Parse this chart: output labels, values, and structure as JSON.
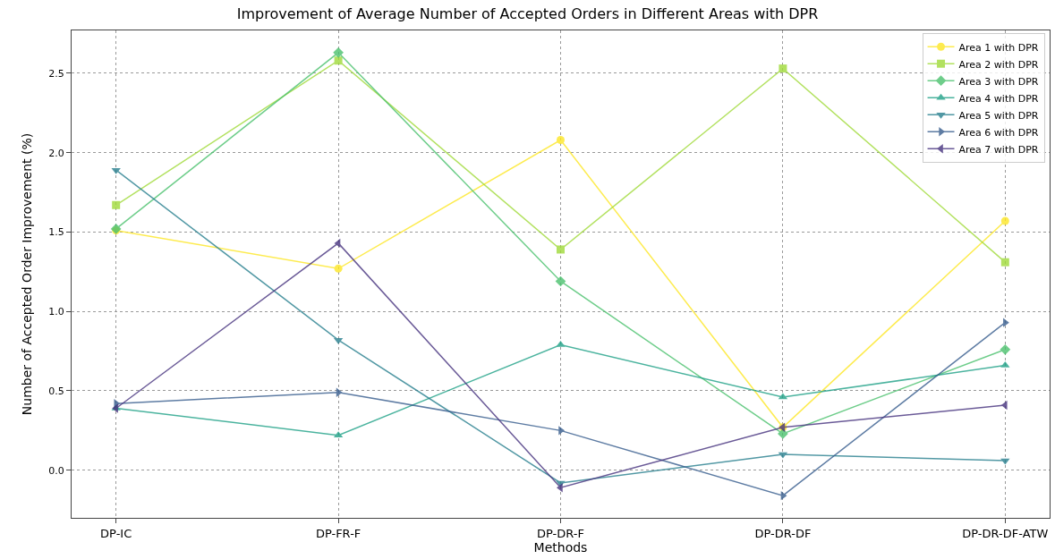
{
  "chart_data": {
    "type": "line",
    "title": "Improvement of Average Number of Accepted Orders in Different Areas with DPR",
    "xlabel": "Methods",
    "ylabel": "Number of Accepted Order Improvement (%)",
    "categories": [
      "DP-IC",
      "DP-FR-F",
      "DP-DR-F",
      "DP-DR-DF",
      "DP-DR-DF-ATW"
    ],
    "series": [
      {
        "name": "Area 1 with DPR",
        "color": "#fde725",
        "marker": "circle",
        "values": [
          1.51,
          1.27,
          2.08,
          0.27,
          1.57
        ]
      },
      {
        "name": "Area 2 with DPR",
        "color": "#a0da39",
        "marker": "square",
        "values": [
          1.67,
          2.58,
          1.39,
          2.53,
          1.31
        ]
      },
      {
        "name": "Area 3 with DPR",
        "color": "#4ac16d",
        "marker": "diamond",
        "values": [
          1.52,
          2.63,
          1.19,
          0.23,
          0.76
        ]
      },
      {
        "name": "Area 4 with DPR",
        "color": "#1fa187",
        "marker": "triangle-up",
        "values": [
          0.39,
          0.22,
          0.79,
          0.46,
          0.66
        ]
      },
      {
        "name": "Area 5 with DPR",
        "color": "#277f8e",
        "marker": "triangle-down",
        "values": [
          1.89,
          0.82,
          -0.08,
          0.1,
          0.06
        ]
      },
      {
        "name": "Area 6 with DPR",
        "color": "#365c8d",
        "marker": "triangle-right",
        "values": [
          0.42,
          0.49,
          0.25,
          -0.16,
          0.93
        ]
      },
      {
        "name": "Area 7 with DPR",
        "color": "#46327e",
        "marker": "triangle-left",
        "values": [
          0.39,
          1.43,
          -0.11,
          0.27,
          0.41
        ]
      }
    ],
    "ylim": [
      -0.3,
      2.77
    ],
    "yticks": [
      {
        "value": 0,
        "label": "0.0"
      },
      0.5,
      {
        "value": 1,
        "label": "1.0"
      },
      1.5,
      {
        "value": 2,
        "label": "2.0"
      },
      2.5
    ],
    "grid": true,
    "legend": "top right"
  }
}
